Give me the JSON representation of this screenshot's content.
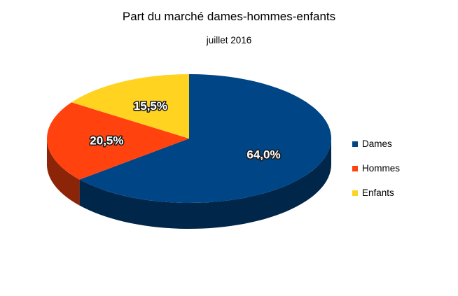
{
  "chart_data": {
    "type": "pie",
    "title": "Part du marché dames-hommes-enfants",
    "subtitle": "juillet 2016",
    "legend_position": "right",
    "style": "3d",
    "slices": [
      {
        "name": "Dames",
        "value": 64.0,
        "label": "64,0%",
        "color": "#004586"
      },
      {
        "name": "Hommes",
        "value": 20.5,
        "label": "20,5%",
        "color": "#ff420e"
      },
      {
        "name": "Enfants",
        "value": 15.5,
        "label": "15,5%",
        "color": "#ffd320"
      }
    ]
  }
}
